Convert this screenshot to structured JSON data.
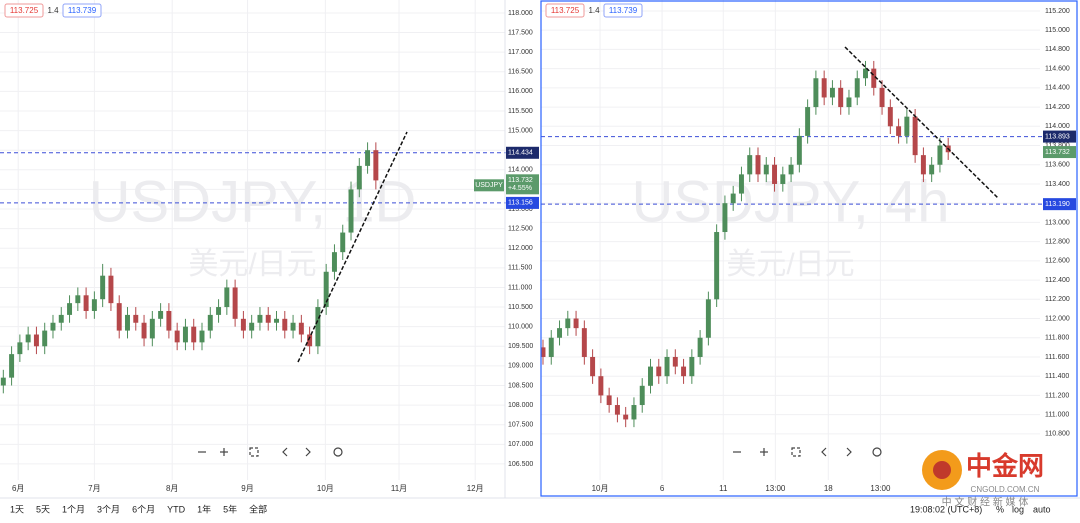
{
  "chart_data": [
    {
      "type": "candlestick",
      "watermark": "USDJPY, 1D",
      "watermark_sub": "美元/日元",
      "bid": 113.725,
      "spread": 1.4,
      "ask": 113.739,
      "up_color": "#4e8d5a",
      "down_color": "#b5474a",
      "ylim": [
        106.09,
        118.33
      ],
      "yticks": [
        {
          "value": 106.5,
          "label": "106.500"
        },
        {
          "value": 107,
          "label": "107.000"
        },
        {
          "value": 107.5,
          "label": "107.500"
        },
        {
          "value": 108,
          "label": "108.000"
        },
        {
          "value": 108.5,
          "label": "108.500"
        },
        {
          "value": 109,
          "label": "109.000"
        },
        {
          "value": 109.5,
          "label": "109.500"
        },
        {
          "value": 110,
          "label": "110.000"
        },
        {
          "value": 110.5,
          "label": "110.500"
        },
        {
          "value": 111,
          "label": "111.000"
        },
        {
          "value": 111.5,
          "label": "111.500"
        },
        {
          "value": 112,
          "label": "112.000"
        },
        {
          "value": 112.5,
          "label": "112.500"
        },
        {
          "value": 113,
          "label": "113.000"
        },
        {
          "value": 113.5,
          "label": "113.500"
        },
        {
          "value": 114,
          "label": "114.000"
        },
        {
          "value": 114.5,
          "label": "114.500"
        },
        {
          "value": 115,
          "label": "115.000"
        },
        {
          "value": 115.5,
          "label": "115.500"
        },
        {
          "value": 116,
          "label": "116.000"
        },
        {
          "value": 116.5,
          "label": "116.500"
        },
        {
          "value": 117,
          "label": "117.000"
        },
        {
          "value": 117.5,
          "label": "117.500"
        },
        {
          "value": 118,
          "label": "118.000"
        }
      ],
      "xlim": [
        -0.4,
        60.6
      ],
      "xticks": [
        {
          "value": 1.8,
          "label": "6月"
        },
        {
          "value": 11,
          "label": "7月"
        },
        {
          "value": 20.4,
          "label": "8月"
        },
        {
          "value": 29.5,
          "label": "9月"
        },
        {
          "value": 38.9,
          "label": "10月"
        },
        {
          "value": 47.8,
          "label": "11月"
        },
        {
          "value": 57,
          "label": "12月"
        }
      ],
      "open": [
        108.5,
        108.7,
        109.3,
        109.6,
        109.8,
        109.5,
        109.9,
        110.1,
        110.3,
        110.6,
        110.8,
        110.4,
        110.7,
        111.3,
        110.6,
        109.9,
        110.3,
        110.1,
        109.7,
        110.2,
        110.4,
        109.9,
        109.6,
        110.0,
        109.6,
        109.9,
        110.3,
        110.5,
        111.0,
        110.2,
        109.9,
        110.1,
        110.3,
        110.1,
        110.2,
        109.9,
        110.1,
        109.8,
        109.5,
        110.5,
        111.4,
        111.9,
        112.4,
        113.5,
        114.1,
        114.5
      ],
      "high": [
        108.9,
        109.5,
        109.8,
        110.0,
        110.0,
        110.1,
        110.3,
        110.5,
        110.8,
        111.0,
        111.0,
        110.9,
        111.6,
        111.5,
        110.8,
        110.5,
        110.5,
        110.3,
        110.4,
        110.6,
        110.6,
        110.1,
        110.2,
        110.2,
        110.1,
        110.5,
        110.7,
        111.2,
        111.2,
        110.4,
        110.3,
        110.5,
        110.5,
        110.4,
        110.4,
        110.3,
        110.3,
        110.0,
        110.7,
        111.6,
        112.1,
        112.6,
        113.7,
        114.3,
        114.7,
        114.7
      ],
      "low": [
        108.3,
        108.5,
        109.1,
        109.4,
        109.3,
        109.3,
        109.7,
        109.9,
        110.1,
        110.4,
        110.2,
        110.2,
        110.5,
        110.4,
        109.7,
        109.7,
        109.9,
        109.5,
        109.5,
        110.0,
        109.7,
        109.4,
        109.4,
        109.4,
        109.4,
        109.7,
        110.1,
        110.3,
        110.0,
        109.7,
        109.7,
        109.9,
        109.9,
        109.9,
        109.7,
        109.7,
        109.6,
        109.3,
        109.3,
        110.3,
        111.2,
        111.7,
        112.2,
        113.3,
        113.9,
        113.5
      ],
      "close": [
        108.7,
        109.3,
        109.6,
        109.8,
        109.5,
        109.9,
        110.1,
        110.3,
        110.6,
        110.8,
        110.4,
        110.7,
        111.3,
        110.6,
        109.9,
        110.3,
        110.1,
        109.7,
        110.2,
        110.4,
        109.9,
        109.6,
        110.0,
        109.6,
        109.9,
        110.3,
        110.5,
        111.0,
        110.2,
        109.9,
        110.1,
        110.3,
        110.1,
        110.2,
        109.9,
        110.1,
        109.8,
        109.5,
        110.5,
        111.4,
        111.9,
        112.4,
        113.5,
        114.1,
        114.5,
        113.73
      ],
      "levels": [
        {
          "value": 114.434,
          "color": "#3d4fd8",
          "label_bg": "#1c2a6b"
        },
        {
          "value": 113.156,
          "color": "#3d4fd8",
          "label_bg": "#2649e0"
        }
      ],
      "last": {
        "value": 113.732,
        "change": "+4.55%",
        "symbol": "USDJPY",
        "color": "#5b9a6a"
      }
    },
    {
      "type": "candlestick",
      "watermark": "USDJPY, 4h",
      "watermark_sub": "美元/日元",
      "bid": 113.725,
      "spread": 1.4,
      "ask": 113.739,
      "up_color": "#4e8d5a",
      "down_color": "#b5474a",
      "ylim": [
        110.32,
        115.314
      ],
      "yticks": [
        {
          "value": 110.8,
          "label": "110.800"
        },
        {
          "value": 111,
          "label": "111.000"
        },
        {
          "value": 111.2,
          "label": "111.200"
        },
        {
          "value": 111.4,
          "label": "111.400"
        },
        {
          "value": 111.6,
          "label": "111.600"
        },
        {
          "value": 111.8,
          "label": "111.800"
        },
        {
          "value": 112,
          "label": "112.000"
        },
        {
          "value": 112.2,
          "label": "112.200"
        },
        {
          "value": 112.4,
          "label": "112.400"
        },
        {
          "value": 112.6,
          "label": "112.600"
        },
        {
          "value": 112.8,
          "label": "112.800"
        },
        {
          "value": 113,
          "label": "113.000"
        },
        {
          "value": 113.2,
          "label": "113.200"
        },
        {
          "value": 113.4,
          "label": "113.400"
        },
        {
          "value": 113.6,
          "label": "113.600"
        },
        {
          "value": 113.8,
          "label": "113.800"
        },
        {
          "value": 114,
          "label": "114.000"
        },
        {
          "value": 114.2,
          "label": "114.200"
        },
        {
          "value": 114.4,
          "label": "114.400"
        },
        {
          "value": 114.6,
          "label": "114.600"
        },
        {
          "value": 114.8,
          "label": "114.800"
        },
        {
          "value": 115,
          "label": "115.000"
        },
        {
          "value": 115.2,
          "label": "115.200"
        }
      ],
      "xlim": [
        -0.24,
        60.1
      ],
      "xticks": [
        {
          "value": 6.9,
          "label": "10月"
        },
        {
          "value": 14.4,
          "label": "6"
        },
        {
          "value": 21.8,
          "label": "11"
        },
        {
          "value": 28.1,
          "label": "13:00"
        },
        {
          "value": 34.5,
          "label": "18"
        },
        {
          "value": 40.8,
          "label": "13:00"
        }
      ],
      "open": [
        111.7,
        111.6,
        111.8,
        111.9,
        112.0,
        111.9,
        111.6,
        111.4,
        111.2,
        111.1,
        111.0,
        110.95,
        111.1,
        111.3,
        111.5,
        111.4,
        111.6,
        111.5,
        111.4,
        111.6,
        111.8,
        112.2,
        112.9,
        113.2,
        113.3,
        113.5,
        113.7,
        113.5,
        113.6,
        113.4,
        113.5,
        113.6,
        113.9,
        114.2,
        114.5,
        114.3,
        114.4,
        114.2,
        114.3,
        114.5,
        114.6,
        114.4,
        114.2,
        114.0,
        113.9,
        114.1,
        113.7,
        113.5,
        113.6,
        113.8
      ],
      "high": [
        111.78,
        111.88,
        111.98,
        112.08,
        112.08,
        111.98,
        111.68,
        111.48,
        111.28,
        111.18,
        111.08,
        111.18,
        111.38,
        111.58,
        111.58,
        111.68,
        111.68,
        111.58,
        111.68,
        111.88,
        112.28,
        112.98,
        113.28,
        113.38,
        113.58,
        113.78,
        113.78,
        113.68,
        113.68,
        113.58,
        113.68,
        113.98,
        114.28,
        114.58,
        114.58,
        114.48,
        114.48,
        114.38,
        114.58,
        114.68,
        114.68,
        114.48,
        114.28,
        114.08,
        114.18,
        114.18,
        113.78,
        113.68,
        113.88,
        113.88
      ],
      "low": [
        111.52,
        111.52,
        111.72,
        111.82,
        111.82,
        111.52,
        111.32,
        111.12,
        111.02,
        110.92,
        110.87,
        110.87,
        111.02,
        111.22,
        111.32,
        111.32,
        111.42,
        111.32,
        111.32,
        111.52,
        111.72,
        112.12,
        112.82,
        113.12,
        113.22,
        113.42,
        113.42,
        113.42,
        113.32,
        113.32,
        113.42,
        113.52,
        113.82,
        114.12,
        114.22,
        114.22,
        114.12,
        114.12,
        114.22,
        114.42,
        114.32,
        114.12,
        113.92,
        113.82,
        113.82,
        113.62,
        113.42,
        113.42,
        113.52,
        113.65
      ],
      "close": [
        111.6,
        111.8,
        111.9,
        112.0,
        111.9,
        111.6,
        111.4,
        111.2,
        111.1,
        111.0,
        110.95,
        111.1,
        111.3,
        111.5,
        111.4,
        111.6,
        111.5,
        111.4,
        111.6,
        111.8,
        112.2,
        112.9,
        113.2,
        113.3,
        113.5,
        113.7,
        113.5,
        113.6,
        113.4,
        113.5,
        113.6,
        113.9,
        114.2,
        114.5,
        114.3,
        114.4,
        114.2,
        114.3,
        114.5,
        114.6,
        114.4,
        114.2,
        114.0,
        113.9,
        114.1,
        113.7,
        113.5,
        113.6,
        113.8,
        113.73
      ],
      "levels": [
        {
          "value": 113.893,
          "color": "#3d4fd8",
          "label_bg": "#1c2a6b"
        },
        {
          "value": 113.19,
          "label": "113.190",
          "color": "#3d4fd8",
          "label_bg": "#2649e0"
        }
      ],
      "last": {
        "value": 113.732,
        "color": "#5b9a6a"
      }
    }
  ],
  "toolbar": {
    "ranges": [
      "1天",
      "5天",
      "1个月",
      "3个月",
      "6个月",
      "YTD",
      "1年",
      "5年",
      "全部"
    ],
    "time": "19:08:02 (UTC+8)",
    "percent": "%",
    "log": "log",
    "auto": "auto"
  },
  "logo": {
    "name": "中金网",
    "domain": "CNGOLD.COM.CN",
    "slogan": "中 文 财 经 新 媒 体"
  }
}
